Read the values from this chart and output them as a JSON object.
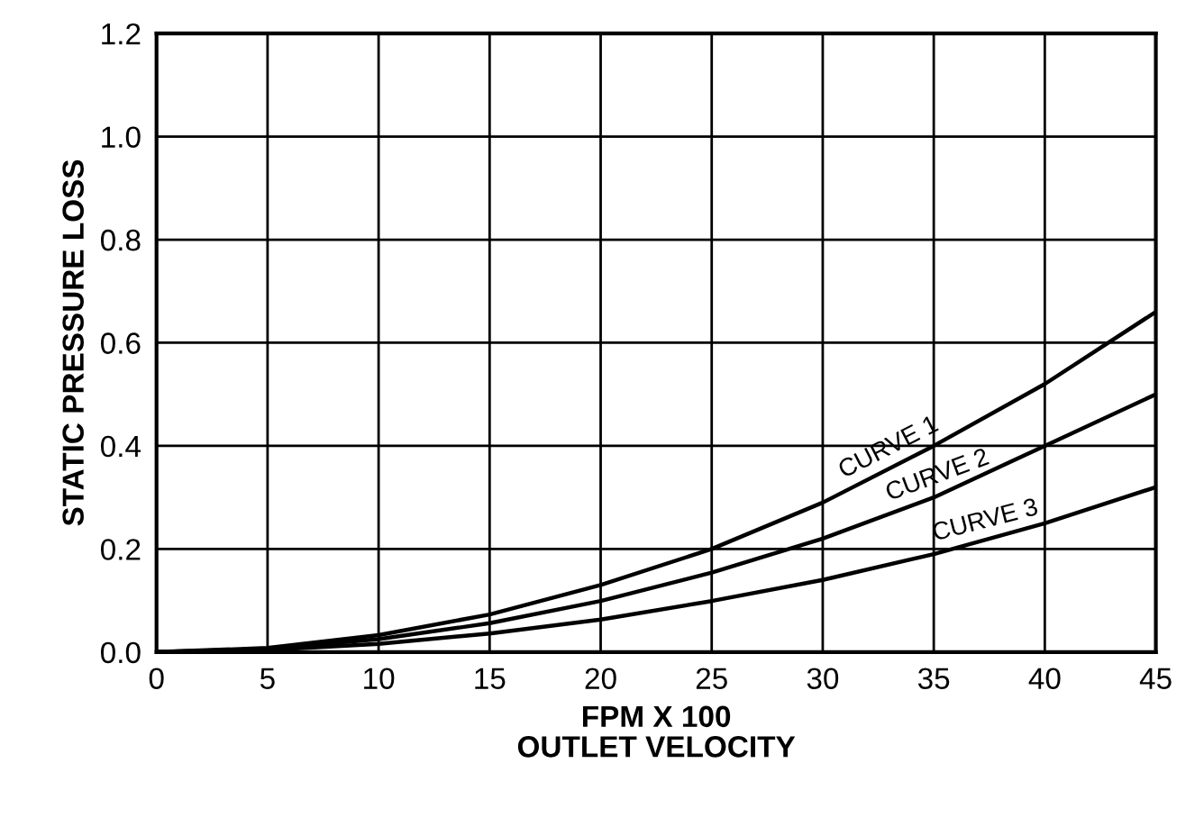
{
  "chart_data": {
    "type": "line",
    "xlabel": "FPM X 100\nOUTLET VELOCITY",
    "ylabel": "STATIC PRESSURE LOSS",
    "x": [
      0,
      5,
      10,
      15,
      20,
      25,
      30,
      35,
      40,
      45
    ],
    "series": [
      {
        "name": "CURVE 1",
        "color": "#000000",
        "values": [
          0,
          0.008,
          0.033,
          0.073,
          0.13,
          0.2,
          0.29,
          0.4,
          0.52,
          0.66
        ]
      },
      {
        "name": "CURVE 2",
        "color": "#000000",
        "values": [
          0,
          0.006,
          0.025,
          0.056,
          0.099,
          0.154,
          0.22,
          0.3,
          0.4,
          0.5
        ]
      },
      {
        "name": "CURVE 3",
        "color": "#000000",
        "values": [
          0,
          0.004,
          0.016,
          0.036,
          0.063,
          0.099,
          0.14,
          0.19,
          0.25,
          0.32
        ]
      }
    ],
    "xlim": [
      0,
      45
    ],
    "ylim": [
      0,
      1.2
    ],
    "xticks": [
      0,
      5,
      10,
      15,
      20,
      25,
      30,
      35,
      40,
      45
    ],
    "yticks": [
      {
        "value": 0,
        "label": "0.0"
      },
      {
        "value": 0.2,
        "label": "0.2"
      },
      {
        "value": 0.4,
        "label": "0.4"
      },
      {
        "value": 0.6,
        "label": "0.6"
      },
      {
        "value": 0.8,
        "label": "0.8"
      },
      {
        "value": 1.0,
        "label": "1.0"
      },
      {
        "value": 1.2,
        "label": "1.2"
      }
    ],
    "grid": true,
    "marker": "none",
    "line_style": "solid",
    "legend": false
  }
}
